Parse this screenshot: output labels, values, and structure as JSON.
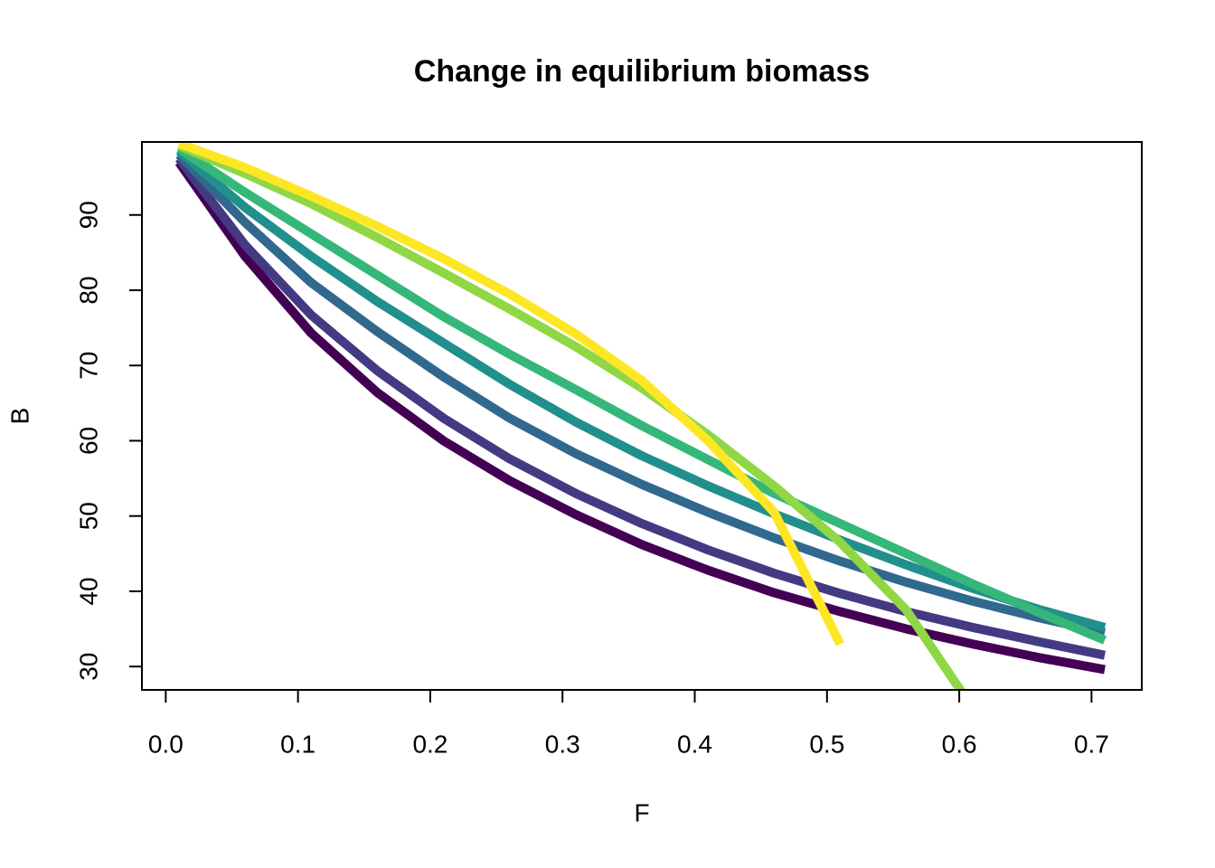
{
  "chart_data": {
    "type": "line",
    "title": "Change in equilibrium biomass",
    "x_label": "F",
    "y_label": "B",
    "x": [
      0.01,
      0.06,
      0.11,
      0.16,
      0.21,
      0.26,
      0.31,
      0.36,
      0.41,
      0.46,
      0.51,
      0.56,
      0.61,
      0.66,
      0.71
    ],
    "series": [
      {
        "color": "#440154",
        "values": [
          97,
          84.5,
          74.3,
          66.4,
          60,
          54.7,
          50.2,
          46.2,
          42.8,
          39.8,
          37.3,
          35,
          33,
          31.2,
          29.6
        ]
      },
      {
        "color": "#443A83",
        "values": [
          97.5,
          86,
          76.7,
          69.3,
          63,
          57.6,
          53,
          49,
          45.5,
          42.4,
          39.7,
          37.3,
          35.2,
          33.3,
          31.5
        ]
      },
      {
        "color": "#31688E",
        "values": [
          98,
          89,
          81,
          74.5,
          68.5,
          63,
          58.3,
          54.2,
          50.5,
          47.1,
          44,
          41.2,
          38.7,
          36.5,
          34.5
        ]
      },
      {
        "color": "#21908C",
        "values": [
          98.5,
          91,
          84.5,
          78.5,
          73,
          67.5,
          62.5,
          58,
          54,
          50.3,
          46.8,
          43.5,
          40.4,
          37.6,
          35.2
        ]
      },
      {
        "color": "#35B779",
        "values": [
          98.8,
          93,
          87.5,
          82,
          76.5,
          71.5,
          66.8,
          62,
          57.5,
          53,
          49,
          45,
          41,
          37.2,
          33.5
        ]
      },
      {
        "color": "#8FD744",
        "values": [
          99.2,
          95.5,
          91.5,
          87,
          82.3,
          77.5,
          72.5,
          67,
          60.8,
          54,
          46.5,
          37.5,
          24.5,
          null,
          null
        ]
      },
      {
        "color": "#FDE725",
        "values": [
          99.5,
          96.3,
          92.5,
          88.5,
          84.2,
          79.5,
          74.2,
          68,
          60,
          50.5,
          33,
          null,
          null,
          null,
          null
        ]
      }
    ],
    "xlim": [
      -0.018,
      0.738
    ],
    "ylim": [
      26.9,
      99.7
    ],
    "xticks": [
      {
        "value": 0,
        "label": "0.0"
      },
      0.1,
      0.2,
      0.3,
      0.4,
      0.5,
      0.6,
      0.7
    ],
    "yticks": [
      30,
      40,
      50,
      60,
      70,
      80,
      90
    ]
  }
}
